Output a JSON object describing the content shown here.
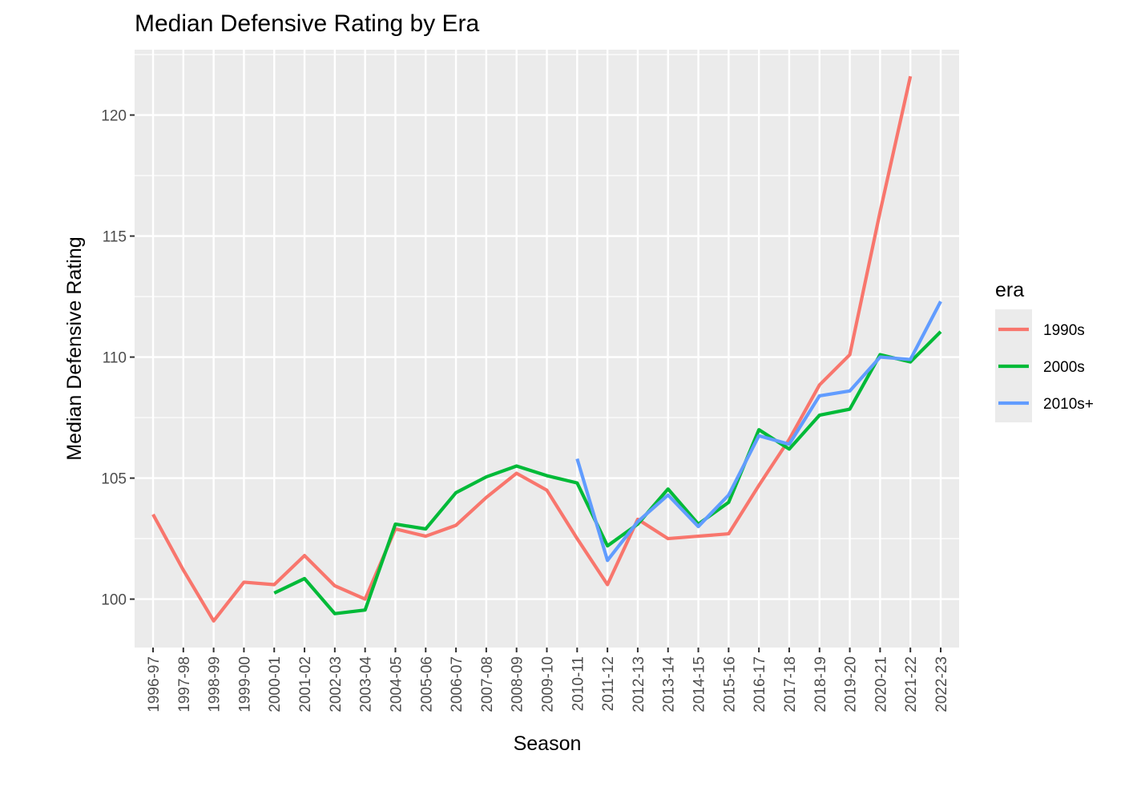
{
  "chart_data": {
    "type": "line",
    "title": "Median Defensive Rating by Era",
    "xlabel": "Season",
    "ylabel": "Median Defensive Rating",
    "categories": [
      "1996-97",
      "1997-98",
      "1998-99",
      "1999-00",
      "2000-01",
      "2001-02",
      "2002-03",
      "2003-04",
      "2004-05",
      "2005-06",
      "2006-07",
      "2007-08",
      "2008-09",
      "2009-10",
      "2010-11",
      "2011-12",
      "2012-13",
      "2013-14",
      "2014-15",
      "2015-16",
      "2016-17",
      "2017-18",
      "2018-19",
      "2019-20",
      "2020-21",
      "2021-22",
      "2022-23"
    ],
    "ylim": [
      98.0,
      122.7
    ],
    "yticks": [
      100,
      105,
      110,
      115,
      120
    ],
    "ytick_labels": [
      "100",
      "105",
      "110",
      "115",
      "120"
    ],
    "grid": true,
    "legend": {
      "title": "era",
      "position": "right"
    },
    "series": [
      {
        "name": "1990s",
        "color": "#F8766D",
        "values": [
          103.5,
          101.2,
          99.1,
          100.7,
          100.6,
          101.8,
          100.55,
          100.0,
          102.9,
          102.6,
          103.05,
          104.2,
          105.2,
          104.5,
          102.5,
          100.6,
          103.3,
          102.5,
          102.6,
          102.7,
          104.7,
          106.6,
          108.85,
          110.1,
          116.0,
          121.6,
          null
        ]
      },
      {
        "name": "2000s",
        "color": "#00BA38",
        "values": [
          null,
          null,
          null,
          null,
          100.25,
          100.85,
          99.4,
          99.55,
          103.1,
          102.9,
          104.4,
          105.05,
          105.5,
          105.1,
          104.8,
          102.2,
          103.1,
          104.55,
          103.1,
          104.0,
          107.0,
          106.2,
          107.6,
          107.85,
          110.1,
          109.8,
          111.05
        ]
      },
      {
        "name": "2010s+",
        "color": "#619CFF",
        "values": [
          null,
          null,
          null,
          null,
          null,
          null,
          null,
          null,
          null,
          null,
          null,
          null,
          null,
          null,
          105.8,
          101.6,
          103.2,
          104.3,
          103.0,
          104.3,
          106.75,
          106.4,
          108.4,
          108.6,
          110.0,
          109.9,
          112.3
        ]
      }
    ]
  }
}
